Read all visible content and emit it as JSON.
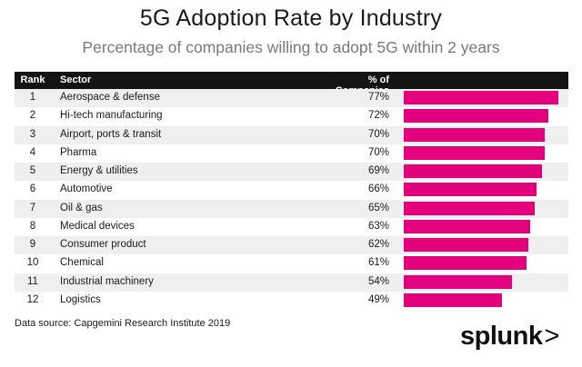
{
  "title": "5G Adoption Rate by Industry",
  "subtitle": "Percentage of companies willing to adopt 5G within 2 years",
  "headers": {
    "rank": "Rank",
    "sector": "Sector",
    "pct": "% of Companies"
  },
  "source": "Data source: Capgemini Research Institute 2019",
  "logo": {
    "text": "splunk",
    "arrow": ">"
  },
  "colors": {
    "bar": "#e4007c",
    "header_bg": "#141414",
    "stripe": "#efefef"
  },
  "chart_data": {
    "type": "bar",
    "title": "5G Adoption Rate by Industry",
    "subtitle": "Percentage of companies willing to adopt 5G within 2 years",
    "orientation": "horizontal",
    "xlim": [
      0,
      77
    ],
    "rows": [
      {
        "rank": "1",
        "sector": "Aerospace & defense",
        "pct": "77%",
        "value": 77
      },
      {
        "rank": "2",
        "sector": "Hi-tech manufacturing",
        "pct": "72%",
        "value": 72
      },
      {
        "rank": "3",
        "sector": "Airport, ports & transit",
        "pct": "70%",
        "value": 70
      },
      {
        "rank": "4",
        "sector": "Pharma",
        "pct": "70%",
        "value": 70
      },
      {
        "rank": "5",
        "sector": "Energy & utilities",
        "pct": "69%",
        "value": 69
      },
      {
        "rank": "6",
        "sector": "Automotive",
        "pct": "66%",
        "value": 66
      },
      {
        "rank": "7",
        "sector": "Oil & gas",
        "pct": "65%",
        "value": 65
      },
      {
        "rank": "8",
        "sector": "Medical devices",
        "pct": "63%",
        "value": 63
      },
      {
        "rank": "9",
        "sector": "Consumer product",
        "pct": "62%",
        "value": 62
      },
      {
        "rank": "10",
        "sector": "Chemical",
        "pct": "61%",
        "value": 61
      },
      {
        "rank": "11",
        "sector": "Industrial machinery",
        "pct": "54%",
        "value": 54
      },
      {
        "rank": "12",
        "sector": "Logistics",
        "pct": "49%",
        "value": 49
      }
    ]
  }
}
